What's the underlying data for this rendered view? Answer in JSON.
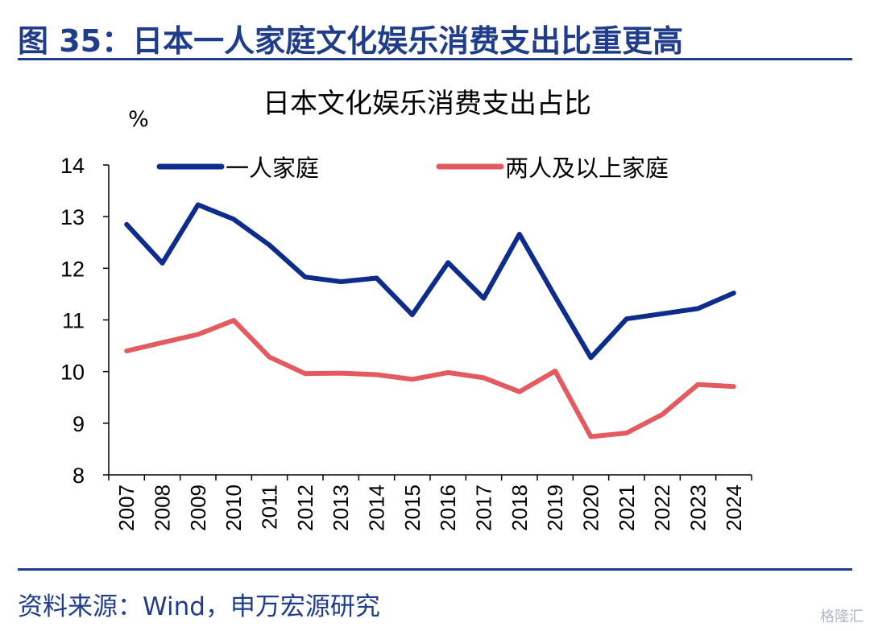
{
  "figure_title": "图 35：日本一人家庭文化娱乐消费支出比重更高",
  "source_note": "资料来源：Wind，申万宏源研究",
  "watermark": "格隆汇",
  "colors": {
    "brand": "#1f3d8a",
    "series_1": "#0d2c8c",
    "series_2": "#e35b5f"
  },
  "chart_data": {
    "type": "line",
    "title": "日本文化娱乐消费支出占比",
    "ylabel": "%",
    "xlabel": "",
    "ylim": [
      8,
      14
    ],
    "yticks": [
      "8",
      "9",
      "10",
      "11",
      "12",
      "13",
      "14"
    ],
    "categories": [
      "2007",
      "2008",
      "2009",
      "2010",
      "2011",
      "2012",
      "2013",
      "2014",
      "2015",
      "2016",
      "2017",
      "2018",
      "2019",
      "2020",
      "2021",
      "2022",
      "2023",
      "2024"
    ],
    "series": [
      {
        "name": "一人家庭",
        "values": [
          12.85,
          12.1,
          13.23,
          12.95,
          12.45,
          11.83,
          11.74,
          11.81,
          11.1,
          12.11,
          11.42,
          12.66,
          11.45,
          10.27,
          11.02,
          11.12,
          11.22,
          11.52
        ]
      },
      {
        "name": "两人及以上家庭",
        "values": [
          10.4,
          10.56,
          10.72,
          10.99,
          10.28,
          9.96,
          9.97,
          9.94,
          9.85,
          9.98,
          9.88,
          9.61,
          10.01,
          8.74,
          8.81,
          9.17,
          9.75,
          9.71
        ]
      }
    ],
    "legend_position": "top",
    "grid": false
  }
}
